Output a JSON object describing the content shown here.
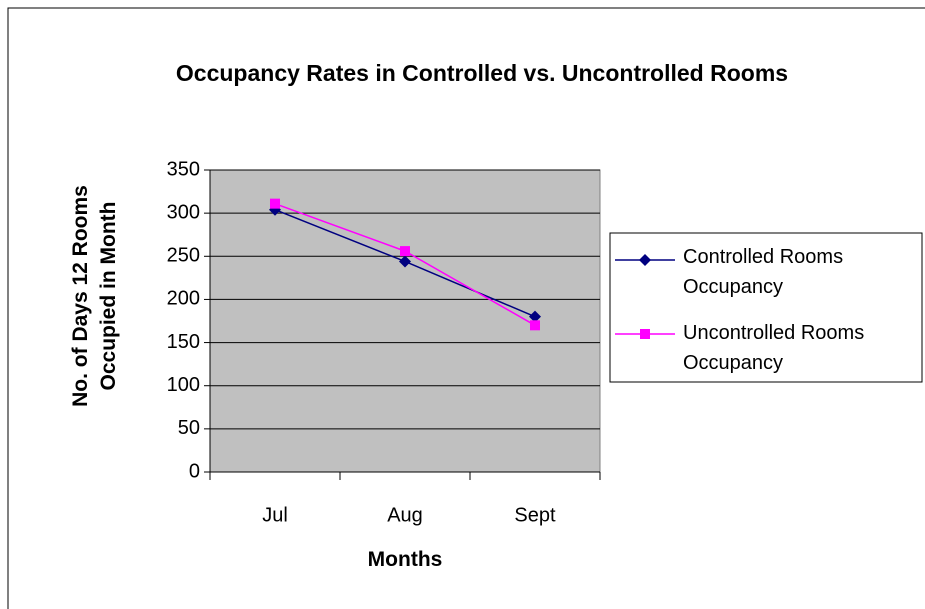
{
  "chart_data": {
    "type": "line",
    "title": "Occupancy Rates in Controlled vs. Uncontrolled Rooms",
    "x_label": "Months",
    "y_label": "No. of Days 12 Rooms Occupied in Month",
    "categories": [
      "Jul",
      "Aug",
      "Sept"
    ],
    "series": [
      {
        "name": "Controlled Rooms Occupancy",
        "color": "#000080",
        "marker": "diamond",
        "values": [
          304,
          244,
          180
        ]
      },
      {
        "name": "Uncontrolled Rooms Occupancy",
        "color": "#ff00ff",
        "marker": "square",
        "values": [
          311,
          256,
          170
        ]
      }
    ],
    "ylim": [
      0,
      350
    ],
    "yticks": [
      0,
      50,
      100,
      150,
      200,
      250,
      300,
      350
    ],
    "grid": true,
    "legend": "right"
  }
}
